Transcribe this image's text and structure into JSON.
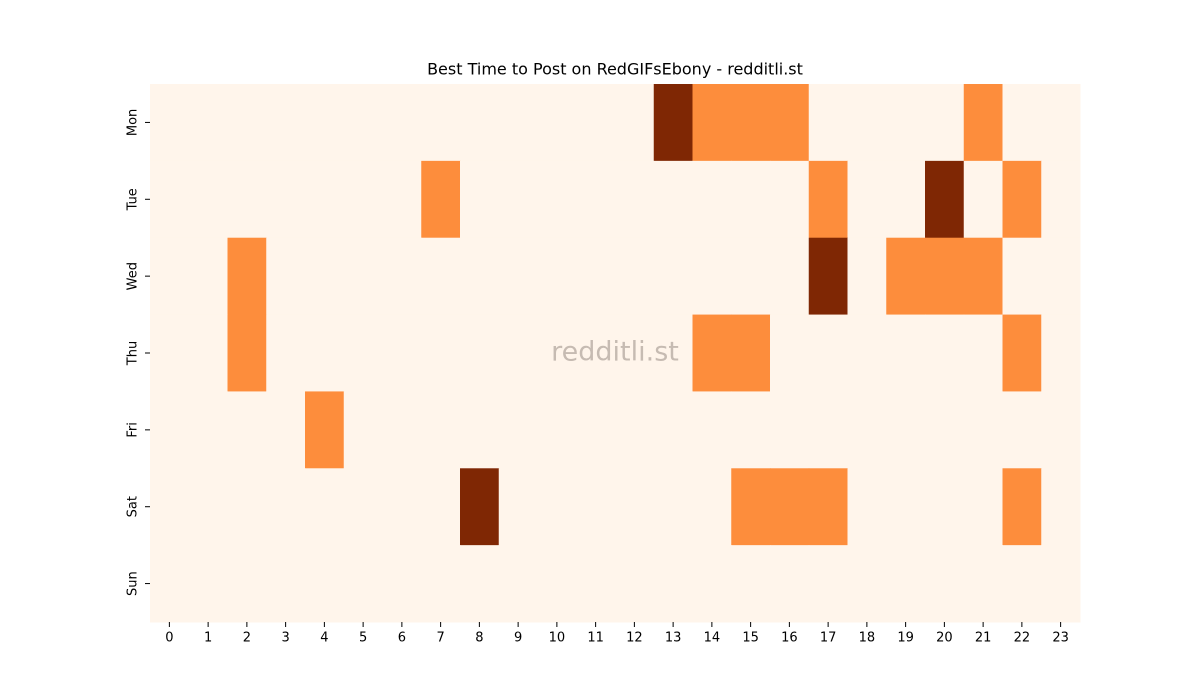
{
  "chart_data": {
    "type": "heatmap",
    "title": "Best Time to Post on RedGIFsEbony - redditli.st",
    "watermark": "redditli.st",
    "x": [
      0,
      1,
      2,
      3,
      4,
      5,
      6,
      7,
      8,
      9,
      10,
      11,
      12,
      13,
      14,
      15,
      16,
      17,
      18,
      19,
      20,
      21,
      22,
      23
    ],
    "y": [
      "Mon",
      "Tue",
      "Wed",
      "Thu",
      "Fri",
      "Sat",
      "Sun"
    ],
    "values": [
      [
        0,
        0,
        0,
        0,
        0,
        0,
        0,
        0,
        0,
        0,
        0,
        0,
        0,
        2,
        1,
        1,
        1,
        0,
        0,
        0,
        0,
        1,
        0,
        0
      ],
      [
        0,
        0,
        0,
        0,
        0,
        0,
        0,
        1,
        0,
        0,
        0,
        0,
        0,
        0,
        0,
        0,
        0,
        1,
        0,
        0,
        2,
        0,
        1,
        0
      ],
      [
        0,
        0,
        1,
        0,
        0,
        0,
        0,
        0,
        0,
        0,
        0,
        0,
        0,
        0,
        0,
        0,
        0,
        2,
        0,
        1,
        1,
        1,
        0,
        0
      ],
      [
        0,
        0,
        1,
        0,
        0,
        0,
        0,
        0,
        0,
        0,
        0,
        0,
        0,
        0,
        1,
        1,
        0,
        0,
        0,
        0,
        0,
        0,
        1,
        0
      ],
      [
        0,
        0,
        0,
        0,
        1,
        0,
        0,
        0,
        0,
        0,
        0,
        0,
        0,
        0,
        0,
        0,
        0,
        0,
        0,
        0,
        0,
        0,
        0,
        0
      ],
      [
        0,
        0,
        0,
        0,
        0,
        0,
        0,
        0,
        2,
        0,
        0,
        0,
        0,
        0,
        0,
        1,
        1,
        1,
        0,
        0,
        0,
        0,
        1,
        0
      ],
      [
        0,
        0,
        0,
        0,
        0,
        0,
        0,
        0,
        0,
        0,
        0,
        0,
        0,
        0,
        0,
        0,
        0,
        0,
        0,
        0,
        0,
        0,
        0,
        0
      ]
    ],
    "zlim": [
      0,
      2
    ],
    "colors": [
      "#fff5eb",
      "#fd8d3c",
      "#7f2704"
    ]
  }
}
